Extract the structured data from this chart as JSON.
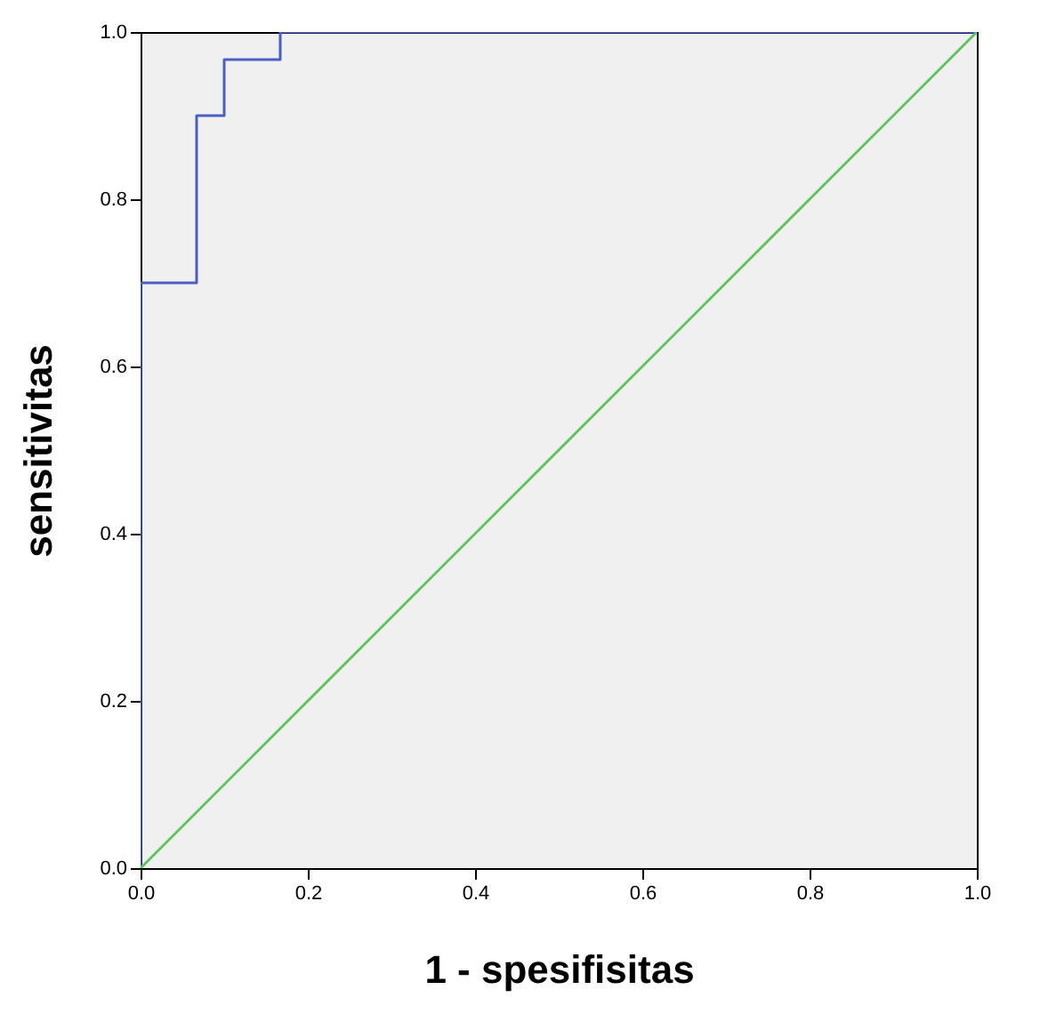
{
  "chart_data": {
    "type": "line",
    "xlabel": "1 - spesifisitas",
    "ylabel": "sensitivitas",
    "xlim": [
      0,
      1
    ],
    "ylim": [
      0,
      1
    ],
    "xticks": [
      {
        "value": 0,
        "label": "0.0"
      },
      {
        "value": 0.2,
        "label": "0.2"
      },
      {
        "value": 0.4,
        "label": "0.4"
      },
      {
        "value": 0.6,
        "label": "0.6"
      },
      {
        "value": 0.8,
        "label": "0.8"
      },
      {
        "value": 1,
        "label": "1.0"
      }
    ],
    "yticks": [
      {
        "value": 0,
        "label": "0.0"
      },
      {
        "value": 0.2,
        "label": "0.2"
      },
      {
        "value": 0.4,
        "label": "0.4"
      },
      {
        "value": 0.6,
        "label": "0.6"
      },
      {
        "value": 0.8,
        "label": "0.8"
      },
      {
        "value": 1,
        "label": "1.0"
      }
    ],
    "grid": false,
    "marker": "none",
    "line_style": "solid",
    "series": [
      {
        "color": "#4a5fc1",
        "x": [
          0,
          0,
          0.067,
          0.067,
          0.1,
          0.1,
          0.167,
          0.167,
          1
        ],
        "values": [
          0,
          0.7,
          0.7,
          0.9,
          0.9,
          0.967,
          0.967,
          1,
          1
        ]
      },
      {
        "color": "#5ec45e",
        "x": [
          0,
          1
        ],
        "values": [
          0,
          1
        ]
      }
    ]
  }
}
